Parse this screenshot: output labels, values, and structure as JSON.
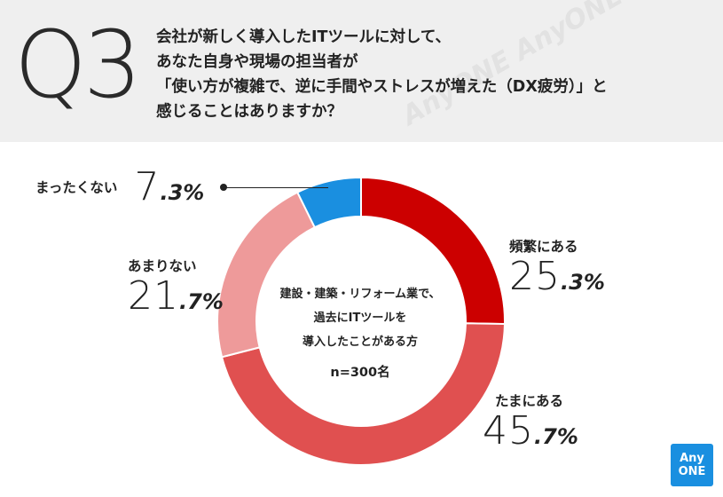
{
  "header": {
    "q_label": "Q3",
    "question_lines": [
      "会社が新しく導入したITツールに対して、",
      "あなた自身や現場の担当者が",
      "「使い方が複雑で、逆に手間やストレスが増えた（DX疲労）」と",
      "感じることはありますか？"
    ],
    "watermark": "AnyONE AnyONE AnyONE"
  },
  "chart_data": {
    "type": "pie",
    "donut": true,
    "categories": [
      "頻繁にある",
      "たまにある",
      "あまりない",
      "まったくない"
    ],
    "values": [
      25.3,
      45.7,
      21.7,
      7.3
    ],
    "value_suffix": "%",
    "colors": [
      "#cc0000",
      "#e05050",
      "#ee9a9a",
      "#1a8fe0"
    ],
    "center_text": [
      "建設・建築・リフォーム業で、",
      "過去にITツールを",
      "導入したことがある方"
    ],
    "sample_size": "n=300名"
  },
  "labels": [
    {
      "name": "頻繁にある",
      "pct_int": "25",
      "pct_dec": ".3%"
    },
    {
      "name": "たまにある",
      "pct_int": "45",
      "pct_dec": ".7%"
    },
    {
      "name": "あまりない",
      "pct_int": "21",
      "pct_dec": ".7%"
    },
    {
      "name": "まったくない",
      "pct_int": "7",
      "pct_dec": ".3%"
    }
  ],
  "logo": {
    "line1": "Any",
    "line2": "ONE",
    "color": "#1a8fe0"
  }
}
